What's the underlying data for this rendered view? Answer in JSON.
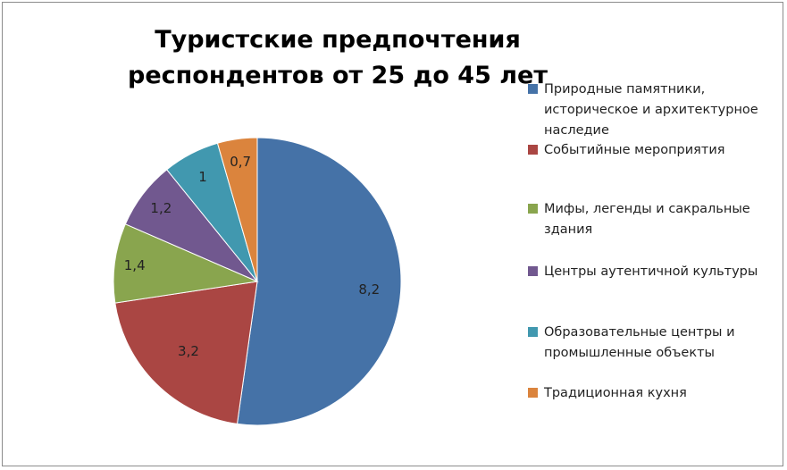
{
  "chart_data": {
    "type": "pie",
    "title": "Туристские предпочтения респондентов от 25 до 45 лет",
    "legend_position": "right",
    "slices": [
      {
        "label": "Природные памятники, историческое и архитектурное наследие",
        "value": 8.2,
        "display": "8,2",
        "color": "#4572A7"
      },
      {
        "label": "Событийные мероприятия",
        "value": 3.2,
        "display": "3,2",
        "color": "#AA4643"
      },
      {
        "label": "Мифы, легенды и сакральные здания",
        "value": 1.4,
        "display": "1,4",
        "color": "#89A54E"
      },
      {
        "label": "Центры аутентичной культуры",
        "value": 1.2,
        "display": "1,2",
        "color": "#71588F"
      },
      {
        "label": "Образовательные центры и промышленные объекты",
        "value": 1,
        "display": "1",
        "color": "#4198AF"
      },
      {
        "label": "Традиционная кухня",
        "value": 0.7,
        "display": "0,7",
        "color": "#DB843D"
      }
    ]
  }
}
